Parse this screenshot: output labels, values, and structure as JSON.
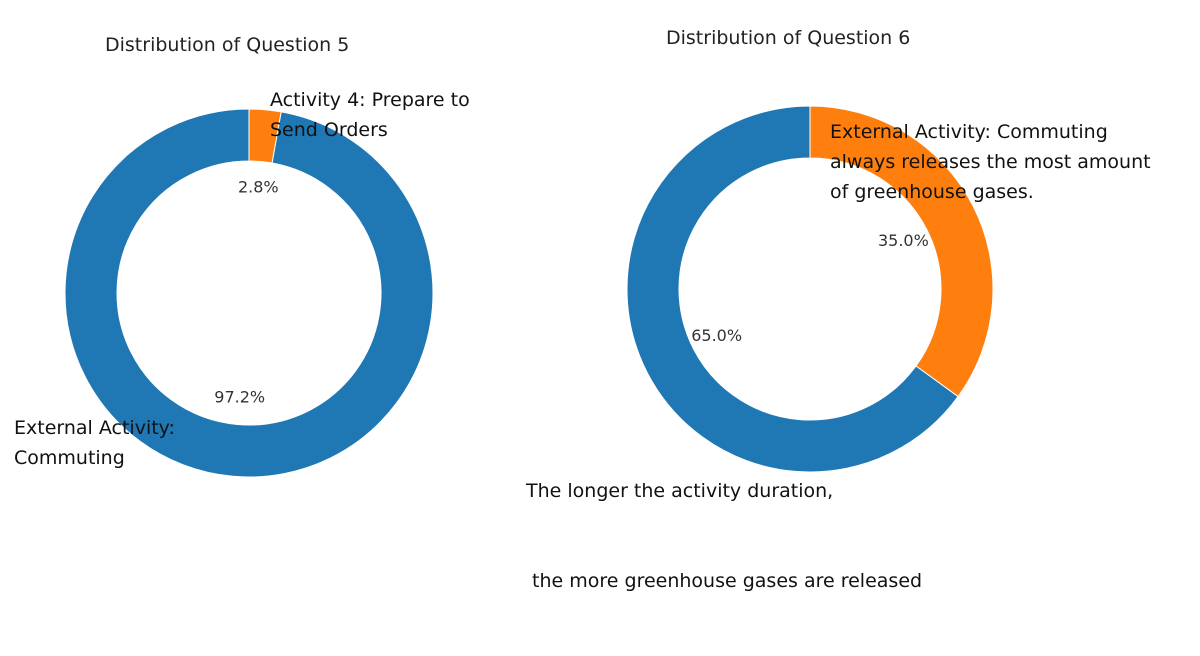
{
  "chart_data": [
    {
      "type": "pie",
      "subtype": "donut",
      "title": "Distribution of Question 5",
      "slices": [
        {
          "label_lines": [
            "Activity 4: Prepare to",
            "Send Orders"
          ],
          "value": 2.8,
          "pct_label": "2.8%",
          "color": "#ff7f0e"
        },
        {
          "label_lines": [
            "External Activity:",
            "Commuting"
          ],
          "value": 97.2,
          "pct_label": "97.2%",
          "color": "#1f77b4"
        }
      ]
    },
    {
      "type": "pie",
      "subtype": "donut",
      "title": "Distribution of Question 6",
      "slices": [
        {
          "label_lines": [
            "External Activity: Commuting",
            "always releases the most amount",
            "of greenhouse gases."
          ],
          "value": 35.0,
          "pct_label": "35.0%",
          "color": "#ff7f0e"
        },
        {
          "label_lines": [
            "The longer the activity duration,",
            " the more greenhouse gases are released"
          ],
          "value": 65.0,
          "pct_label": "65.0%",
          "color": "#1f77b4"
        }
      ]
    }
  ]
}
